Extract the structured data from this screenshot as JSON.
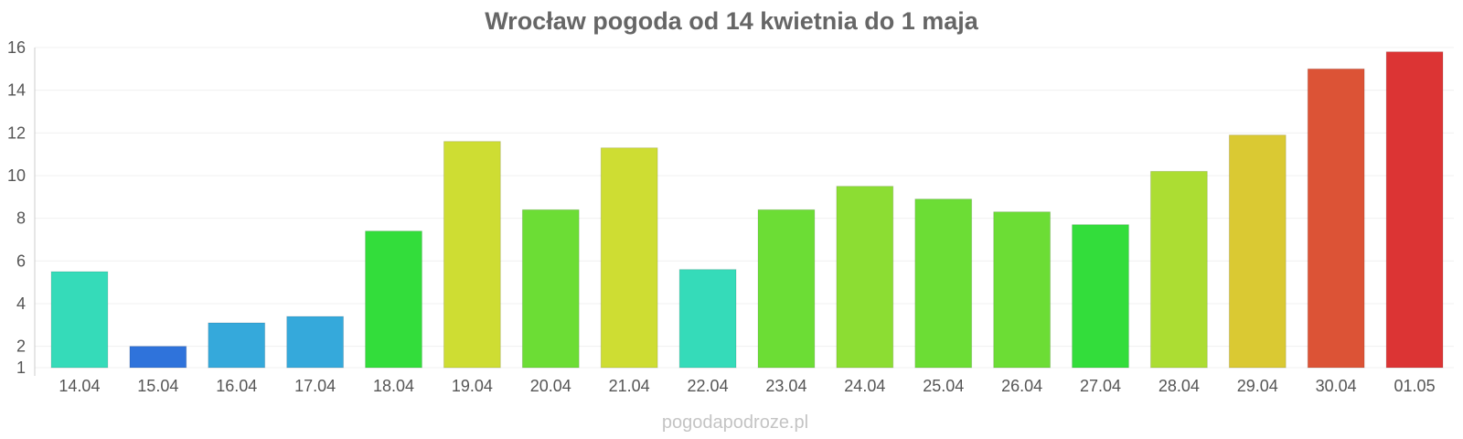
{
  "chart_data": {
    "type": "bar",
    "title": "Wrocław pogoda od 14 kwietnia do 1 maja",
    "xlabel": "",
    "ylabel": "",
    "ylim": [
      1,
      16
    ],
    "yticks": [
      1,
      2,
      4,
      6,
      8,
      10,
      12,
      14,
      16
    ],
    "grid": true,
    "categories": [
      "14.04",
      "15.04",
      "16.04",
      "17.04",
      "18.04",
      "19.04",
      "20.04",
      "21.04",
      "22.04",
      "23.04",
      "24.04",
      "25.04",
      "26.04",
      "27.04",
      "28.04",
      "29.04",
      "30.04",
      "01.05"
    ],
    "values": [
      5.5,
      2.0,
      3.1,
      3.4,
      7.4,
      11.6,
      8.4,
      11.3,
      5.6,
      8.4,
      9.5,
      8.9,
      8.3,
      7.7,
      10.2,
      11.9,
      15.0,
      15.8
    ],
    "colors": [
      "#35dbb9",
      "#2f73db",
      "#35a9db",
      "#35a9db",
      "#33dd3b",
      "#cedd33",
      "#6cdd35",
      "#cedd33",
      "#35dbb9",
      "#6cdd35",
      "#8cdd33",
      "#6cdd35",
      "#6cdd35",
      "#33dd3b",
      "#acdd33",
      "#dac933",
      "#dc5336",
      "#dc3434"
    ]
  },
  "credit": "pogodapodroze.pl"
}
